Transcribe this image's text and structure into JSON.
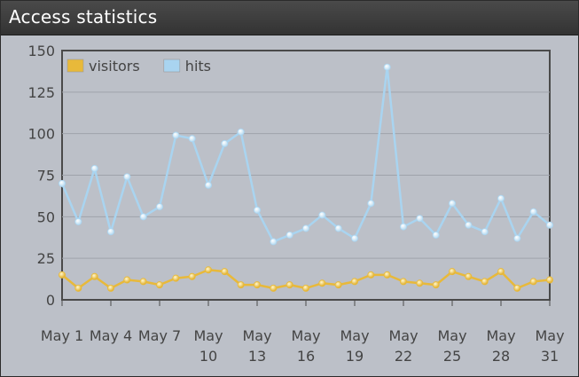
{
  "title": "Access statistics",
  "chart_data": {
    "type": "line",
    "x": [
      "May 1",
      "May 2",
      "May 3",
      "May 4",
      "May 5",
      "May 6",
      "May 7",
      "May 8",
      "May 9",
      "May 10",
      "May 11",
      "May 12",
      "May 13",
      "May 14",
      "May 15",
      "May 16",
      "May 17",
      "May 18",
      "May 19",
      "May 20",
      "May 21",
      "May 22",
      "May 23",
      "May 24",
      "May 25",
      "May 26",
      "May 27",
      "May 28",
      "May 29",
      "May 30",
      "May 31"
    ],
    "x_ticks": [
      {
        "index": 0,
        "line1": "May 1",
        "line2": ""
      },
      {
        "index": 3,
        "line1": "May 4",
        "line2": ""
      },
      {
        "index": 6,
        "line1": "May 7",
        "line2": ""
      },
      {
        "index": 9,
        "line1": "May",
        "line2": "10"
      },
      {
        "index": 12,
        "line1": "May",
        "line2": "13"
      },
      {
        "index": 15,
        "line1": "May",
        "line2": "16"
      },
      {
        "index": 18,
        "line1": "May",
        "line2": "19"
      },
      {
        "index": 21,
        "line1": "May",
        "line2": "22"
      },
      {
        "index": 24,
        "line1": "May",
        "line2": "25"
      },
      {
        "index": 27,
        "line1": "May",
        "line2": "28"
      },
      {
        "index": 30,
        "line1": "May",
        "line2": "31"
      }
    ],
    "series": [
      {
        "name": "visitors",
        "color": "#e8b93a",
        "values": [
          15,
          7,
          14,
          7,
          12,
          11,
          9,
          13,
          14,
          18,
          17,
          9,
          9,
          7,
          9,
          7,
          10,
          9,
          11,
          15,
          15,
          11,
          10,
          9,
          17,
          14,
          11,
          17,
          7,
          11,
          12
        ]
      },
      {
        "name": "hits",
        "color": "#a9d4f0",
        "values": [
          70,
          47,
          79,
          41,
          74,
          50,
          56,
          99,
          97,
          69,
          94,
          101,
          54,
          35,
          39,
          43,
          51,
          43,
          37,
          58,
          140,
          44,
          49,
          39,
          58,
          45,
          41,
          61,
          37,
          53,
          45
        ]
      }
    ],
    "ylim": [
      0,
      150
    ],
    "yticks": [
      0,
      25,
      50,
      75,
      100,
      125,
      150
    ],
    "legend_position": "top-left",
    "grid": true
  }
}
